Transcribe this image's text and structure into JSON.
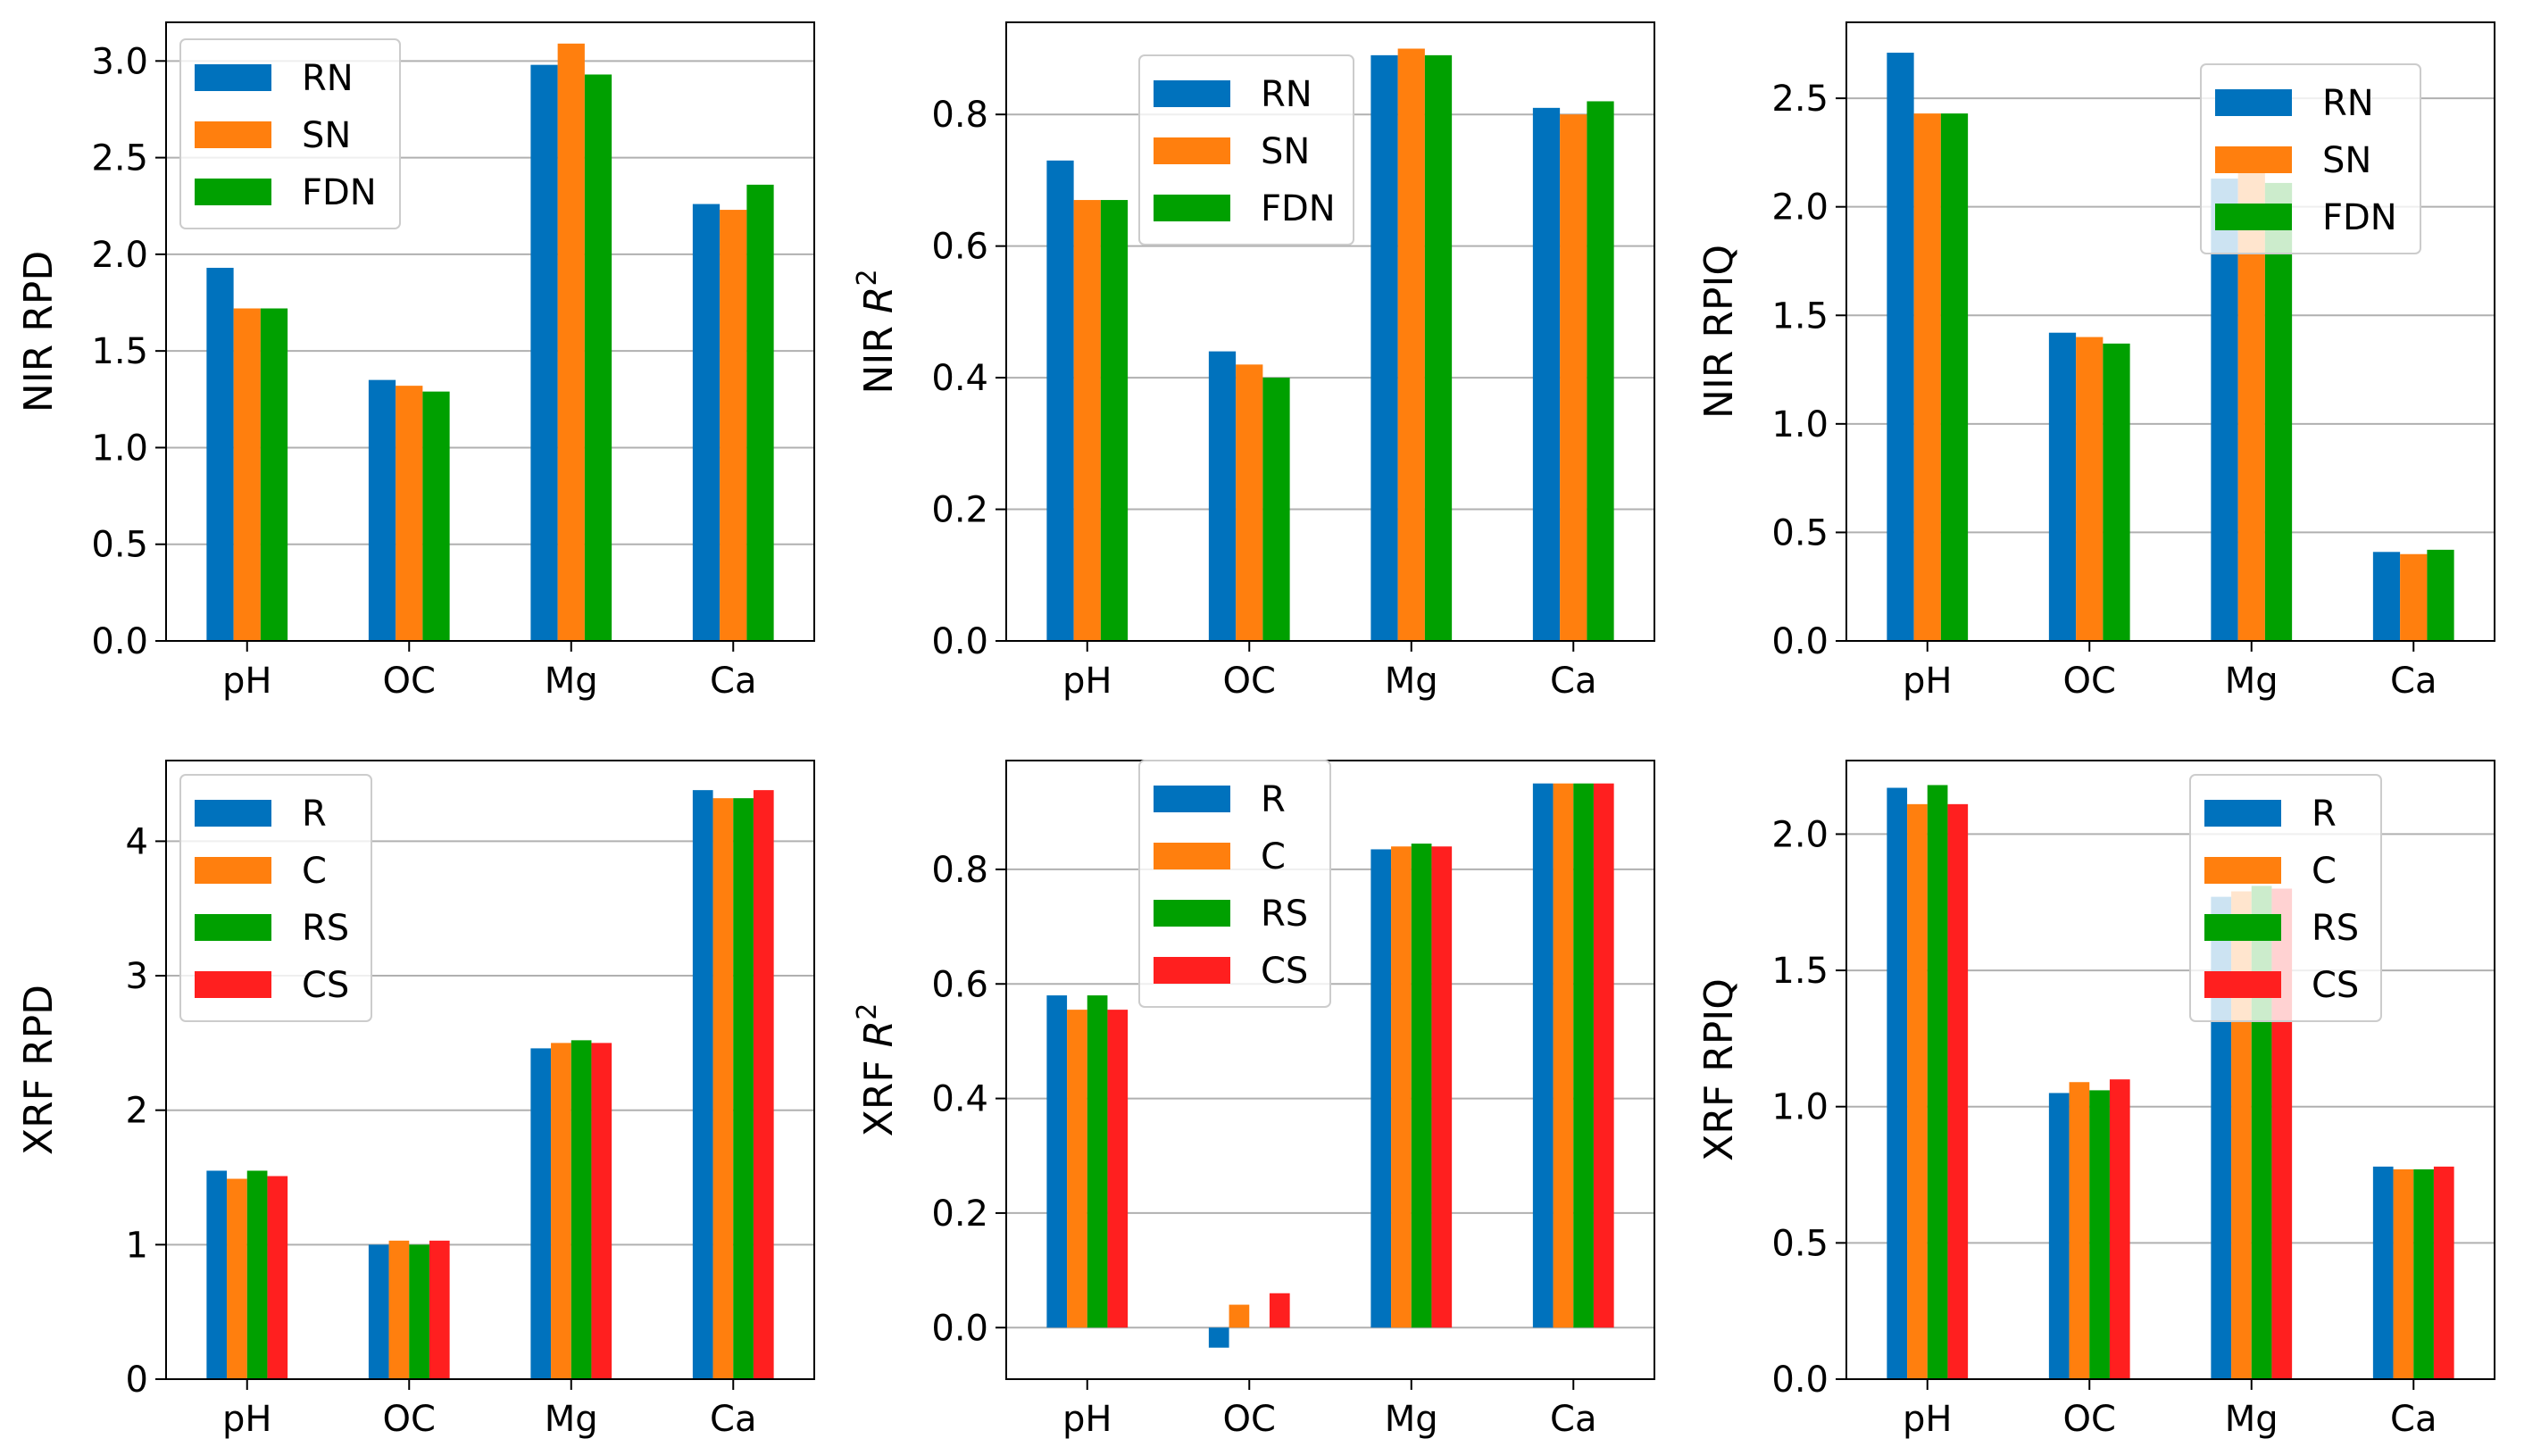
{
  "colors": {
    "blue": "#0072bd",
    "orange": "#ff7f0e",
    "green": "#00a000",
    "red": "#ff1f1f"
  },
  "chart_data": [
    {
      "type": "bar",
      "ylabel": "NIR RPD",
      "categories": [
        "pH",
        "OC",
        "Mg",
        "Ca"
      ],
      "ylim": [
        0,
        3.2
      ],
      "yticks": [
        0.0,
        0.5,
        1.0,
        1.5,
        2.0,
        2.5,
        3.0
      ],
      "ytick_labels": [
        "0.0",
        "0.5",
        "1.0",
        "1.5",
        "2.0",
        "2.5",
        "3.0"
      ],
      "grid": true,
      "legend_position": "top-left",
      "series": [
        {
          "name": "RN",
          "color": "#0072bd",
          "values": [
            1.93,
            1.35,
            2.98,
            2.26
          ]
        },
        {
          "name": "SN",
          "color": "#ff7f0e",
          "values": [
            1.72,
            1.32,
            3.09,
            2.23
          ]
        },
        {
          "name": "FDN",
          "color": "#00a000",
          "values": [
            1.72,
            1.29,
            2.93,
            2.36
          ]
        }
      ]
    },
    {
      "type": "bar",
      "ylabel": "NIR R",
      "ylabel_sup": "2",
      "categories": [
        "pH",
        "OC",
        "Mg",
        "Ca"
      ],
      "ylim": [
        0,
        0.94
      ],
      "yticks": [
        0.0,
        0.2,
        0.4,
        0.6,
        0.8
      ],
      "ytick_labels": [
        "0.0",
        "0.2",
        "0.4",
        "0.6",
        "0.8"
      ],
      "grid": true,
      "legend_position": "top-center",
      "series": [
        {
          "name": "RN",
          "color": "#0072bd",
          "values": [
            0.73,
            0.44,
            0.89,
            0.81
          ]
        },
        {
          "name": "SN",
          "color": "#ff7f0e",
          "values": [
            0.67,
            0.42,
            0.9,
            0.8
          ]
        },
        {
          "name": "FDN",
          "color": "#00a000",
          "values": [
            0.67,
            0.4,
            0.89,
            0.82
          ]
        }
      ]
    },
    {
      "type": "bar",
      "ylabel": "NIR RPIQ",
      "categories": [
        "pH",
        "OC",
        "Mg",
        "Ca"
      ],
      "ylim": [
        0,
        2.85
      ],
      "yticks": [
        0.0,
        0.5,
        1.0,
        1.5,
        2.0,
        2.5
      ],
      "ytick_labels": [
        "0.0",
        "0.5",
        "1.0",
        "1.5",
        "2.0",
        "2.5"
      ],
      "grid": true,
      "legend_position": "top-right",
      "series": [
        {
          "name": "RN",
          "color": "#0072bd",
          "values": [
            2.71,
            1.42,
            2.13,
            0.41
          ]
        },
        {
          "name": "SN",
          "color": "#ff7f0e",
          "values": [
            2.43,
            1.4,
            2.21,
            0.4
          ]
        },
        {
          "name": "FDN",
          "color": "#00a000",
          "values": [
            2.43,
            1.37,
            2.11,
            0.42
          ]
        }
      ]
    },
    {
      "type": "bar",
      "ylabel": "XRF RPD",
      "categories": [
        "pH",
        "OC",
        "Mg",
        "Ca"
      ],
      "ylim": [
        0,
        4.6
      ],
      "yticks": [
        0,
        1,
        2,
        3,
        4
      ],
      "ytick_labels": [
        "0",
        "1",
        "2",
        "3",
        "4"
      ],
      "grid": true,
      "legend_position": "top-left",
      "series": [
        {
          "name": "R",
          "color": "#0072bd",
          "values": [
            1.55,
            1.0,
            2.46,
            4.38
          ]
        },
        {
          "name": "C",
          "color": "#ff7f0e",
          "values": [
            1.49,
            1.03,
            2.5,
            4.32
          ]
        },
        {
          "name": "RS",
          "color": "#00a000",
          "values": [
            1.55,
            1.0,
            2.52,
            4.32
          ]
        },
        {
          "name": "CS",
          "color": "#ff1f1f",
          "values": [
            1.51,
            1.03,
            2.5,
            4.38
          ]
        }
      ]
    },
    {
      "type": "bar",
      "ylabel": "XRF R",
      "ylabel_sup": "2",
      "categories": [
        "pH",
        "OC",
        "Mg",
        "Ca"
      ],
      "ylim": [
        -0.09,
        0.99
      ],
      "yticks": [
        0.0,
        0.2,
        0.4,
        0.6,
        0.8
      ],
      "ytick_labels": [
        "0.0",
        "0.2",
        "0.4",
        "0.6",
        "0.8"
      ],
      "grid": true,
      "legend_position": "top-center",
      "series": [
        {
          "name": "R",
          "color": "#0072bd",
          "values": [
            0.58,
            -0.035,
            0.835,
            0.95
          ]
        },
        {
          "name": "C",
          "color": "#ff7f0e",
          "values": [
            0.555,
            0.04,
            0.84,
            0.95
          ]
        },
        {
          "name": "RS",
          "color": "#00a000",
          "values": [
            0.58,
            0.0,
            0.845,
            0.95
          ]
        },
        {
          "name": "CS",
          "color": "#ff1f1f",
          "values": [
            0.555,
            0.06,
            0.84,
            0.95
          ]
        }
      ]
    },
    {
      "type": "bar",
      "ylabel": "XRF RPIQ",
      "categories": [
        "pH",
        "OC",
        "Mg",
        "Ca"
      ],
      "ylim": [
        0,
        2.27
      ],
      "yticks": [
        0.0,
        0.5,
        1.0,
        1.5,
        2.0
      ],
      "ytick_labels": [
        "0.0",
        "0.5",
        "1.0",
        "1.5",
        "2.0"
      ],
      "grid": true,
      "legend_position": "top-right",
      "series": [
        {
          "name": "R",
          "color": "#0072bd",
          "values": [
            2.17,
            1.05,
            1.77,
            0.78
          ]
        },
        {
          "name": "C",
          "color": "#ff7f0e",
          "values": [
            2.11,
            1.09,
            1.79,
            0.77
          ]
        },
        {
          "name": "RS",
          "color": "#00a000",
          "values": [
            2.18,
            1.06,
            1.81,
            0.77
          ]
        },
        {
          "name": "CS",
          "color": "#ff1f1f",
          "values": [
            2.11,
            1.1,
            1.8,
            0.78
          ]
        }
      ]
    }
  ]
}
